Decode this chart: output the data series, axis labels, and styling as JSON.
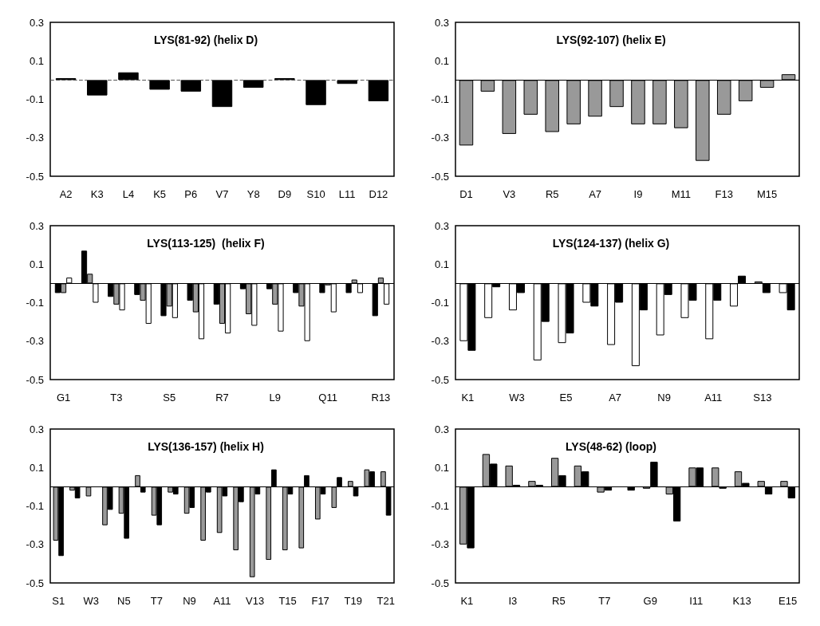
{
  "chart_data": [
    {
      "type": "bar",
      "title": "LYS(81-92) (helix D)",
      "categories": [
        "A2",
        "K3",
        "L4",
        "K5",
        "P6",
        "V7",
        "Y8",
        "D9",
        "S10",
        "L11",
        "D12"
      ],
      "series": [
        {
          "color": "#000000",
          "values": [
            0.01,
            -0.08,
            0.04,
            -0.05,
            -0.06,
            -0.14,
            -0.04,
            0.01,
            -0.13,
            -0.02,
            -0.11
          ]
        }
      ],
      "ylim": [
        -0.5,
        0.3
      ],
      "yticks": [
        0.3,
        0.1,
        -0.1,
        -0.3,
        -0.5
      ],
      "ref_lines": [
        {
          "axis": "y",
          "value": 0,
          "line_style": "dashed",
          "color": "#555555"
        }
      ]
    },
    {
      "type": "bar",
      "title": "LYS(92-107) (helix E)",
      "categories": [
        "D1",
        null,
        "V3",
        null,
        "R5",
        null,
        "A7",
        null,
        "I9",
        null,
        "M11",
        null,
        "F13",
        null,
        "M15",
        null
      ],
      "series": [
        {
          "color": "#999999",
          "values": [
            -0.34,
            -0.06,
            -0.28,
            -0.18,
            -0.27,
            -0.23,
            -0.19,
            -0.14,
            -0.23,
            -0.23,
            -0.25,
            -0.42,
            -0.18,
            -0.11,
            -0.04,
            0.03
          ]
        }
      ],
      "ylim": [
        -0.5,
        0.3
      ],
      "yticks": [
        0.3,
        0.1,
        -0.1,
        -0.3,
        -0.5
      ],
      "ref_lines": [
        {
          "axis": "y",
          "value": 0,
          "line_style": "solid",
          "color": "#000000"
        }
      ]
    },
    {
      "type": "bar",
      "title": "LYS(113-125)  (helix F)",
      "categories": [
        "G1",
        null,
        "T3",
        null,
        "S5",
        null,
        "R7",
        null,
        "L9",
        null,
        "Q11",
        null,
        "R13"
      ],
      "series": [
        {
          "color": "#000000",
          "values": [
            -0.05,
            0.17,
            -0.07,
            -0.06,
            -0.17,
            -0.09,
            -0.11,
            -0.03,
            -0.03,
            -0.05,
            -0.05,
            -0.05,
            -0.17
          ]
        },
        {
          "color": "#999999",
          "values": [
            -0.05,
            0.05,
            -0.11,
            -0.09,
            -0.12,
            -0.15,
            -0.21,
            -0.16,
            -0.11,
            -0.12,
            -0.01,
            0.02,
            0.03
          ]
        },
        {
          "color": "#ffffff",
          "values": [
            0.03,
            -0.1,
            -0.14,
            -0.21,
            -0.18,
            -0.29,
            -0.26,
            -0.22,
            -0.25,
            -0.3,
            -0.15,
            -0.05,
            -0.11
          ]
        }
      ],
      "ylim": [
        -0.5,
        0.3
      ],
      "yticks": [
        0.3,
        0.1,
        -0.1,
        -0.3,
        -0.5
      ],
      "ref_lines": [
        {
          "axis": "y",
          "value": 0,
          "line_style": "solid",
          "color": "#000000"
        }
      ]
    },
    {
      "type": "bar",
      "title": "LYS(124-137) (helix G)",
      "categories": [
        "K1",
        null,
        "W3",
        null,
        "E5",
        null,
        "A7",
        null,
        "N9",
        null,
        "A11",
        null,
        "S13",
        null
      ],
      "series": [
        {
          "color": "#ffffff",
          "values": [
            -0.3,
            -0.18,
            -0.14,
            -0.4,
            -0.31,
            -0.1,
            -0.32,
            -0.43,
            -0.27,
            -0.18,
            -0.29,
            -0.12,
            0.01,
            -0.05
          ]
        },
        {
          "color": "#000000",
          "values": [
            -0.35,
            -0.02,
            -0.05,
            -0.2,
            -0.26,
            -0.12,
            -0.1,
            -0.14,
            -0.06,
            -0.09,
            -0.09,
            0.04,
            -0.05,
            -0.14
          ]
        }
      ],
      "ylim": [
        -0.5,
        0.3
      ],
      "yticks": [
        0.3,
        0.1,
        -0.1,
        -0.3,
        -0.5
      ],
      "ref_lines": [
        {
          "axis": "y",
          "value": 0,
          "line_style": "solid",
          "color": "#000000"
        }
      ]
    },
    {
      "type": "bar",
      "title": "LYS(136-157) (helix H)",
      "categories": [
        "S1",
        null,
        "W3",
        null,
        "N5",
        null,
        "T7",
        null,
        "N9",
        null,
        "A11",
        null,
        "V13",
        null,
        "T15",
        null,
        "F17",
        null,
        "T19",
        null,
        "T21"
      ],
      "series": [
        {
          "color": "#999999",
          "values": [
            -0.28,
            -0.02,
            -0.05,
            -0.2,
            -0.14,
            0.06,
            -0.15,
            -0.03,
            -0.14,
            -0.28,
            -0.24,
            -0.33,
            -0.47,
            -0.38,
            -0.33,
            -0.32,
            -0.17,
            -0.11,
            0.03,
            0.09,
            0.08
          ]
        },
        {
          "color": "#000000",
          "values": [
            -0.36,
            -0.06,
            null,
            -0.12,
            -0.27,
            -0.03,
            -0.2,
            -0.04,
            -0.11,
            -0.03,
            -0.05,
            -0.08,
            -0.04,
            0.09,
            -0.04,
            0.06,
            -0.04,
            0.05,
            -0.05,
            0.08,
            -0.15
          ]
        }
      ],
      "ylim": [
        -0.5,
        0.3
      ],
      "yticks": [
        0.3,
        0.1,
        -0.1,
        -0.3,
        -0.5
      ],
      "ref_lines": [
        {
          "axis": "y",
          "value": 0,
          "line_style": "solid",
          "color": "#000000"
        }
      ]
    },
    {
      "type": "bar",
      "title": "LYS(48-62) (loop)",
      "categories": [
        "K1",
        null,
        "I3",
        null,
        "R5",
        null,
        "T7",
        null,
        "G9",
        null,
        "I11",
        null,
        "K13",
        null,
        "E15"
      ],
      "series": [
        {
          "color": "#999999",
          "values": [
            -0.3,
            0.17,
            0.11,
            0.03,
            0.15,
            0.11,
            -0.03,
            null,
            -0.01,
            -0.04,
            0.1,
            0.1,
            0.08,
            0.03,
            0.03
          ]
        },
        {
          "color": "#000000",
          "values": [
            -0.32,
            0.12,
            0.01,
            0.01,
            0.06,
            0.08,
            -0.02,
            -0.02,
            0.13,
            -0.18,
            0.1,
            -0.01,
            0.02,
            -0.04,
            -0.06
          ]
        }
      ],
      "ylim": [
        -0.5,
        0.3
      ],
      "yticks": [
        0.3,
        0.1,
        -0.1,
        -0.3,
        -0.5
      ],
      "ref_lines": [
        {
          "axis": "y",
          "value": 0,
          "line_style": "solid",
          "color": "#000000"
        }
      ]
    }
  ]
}
